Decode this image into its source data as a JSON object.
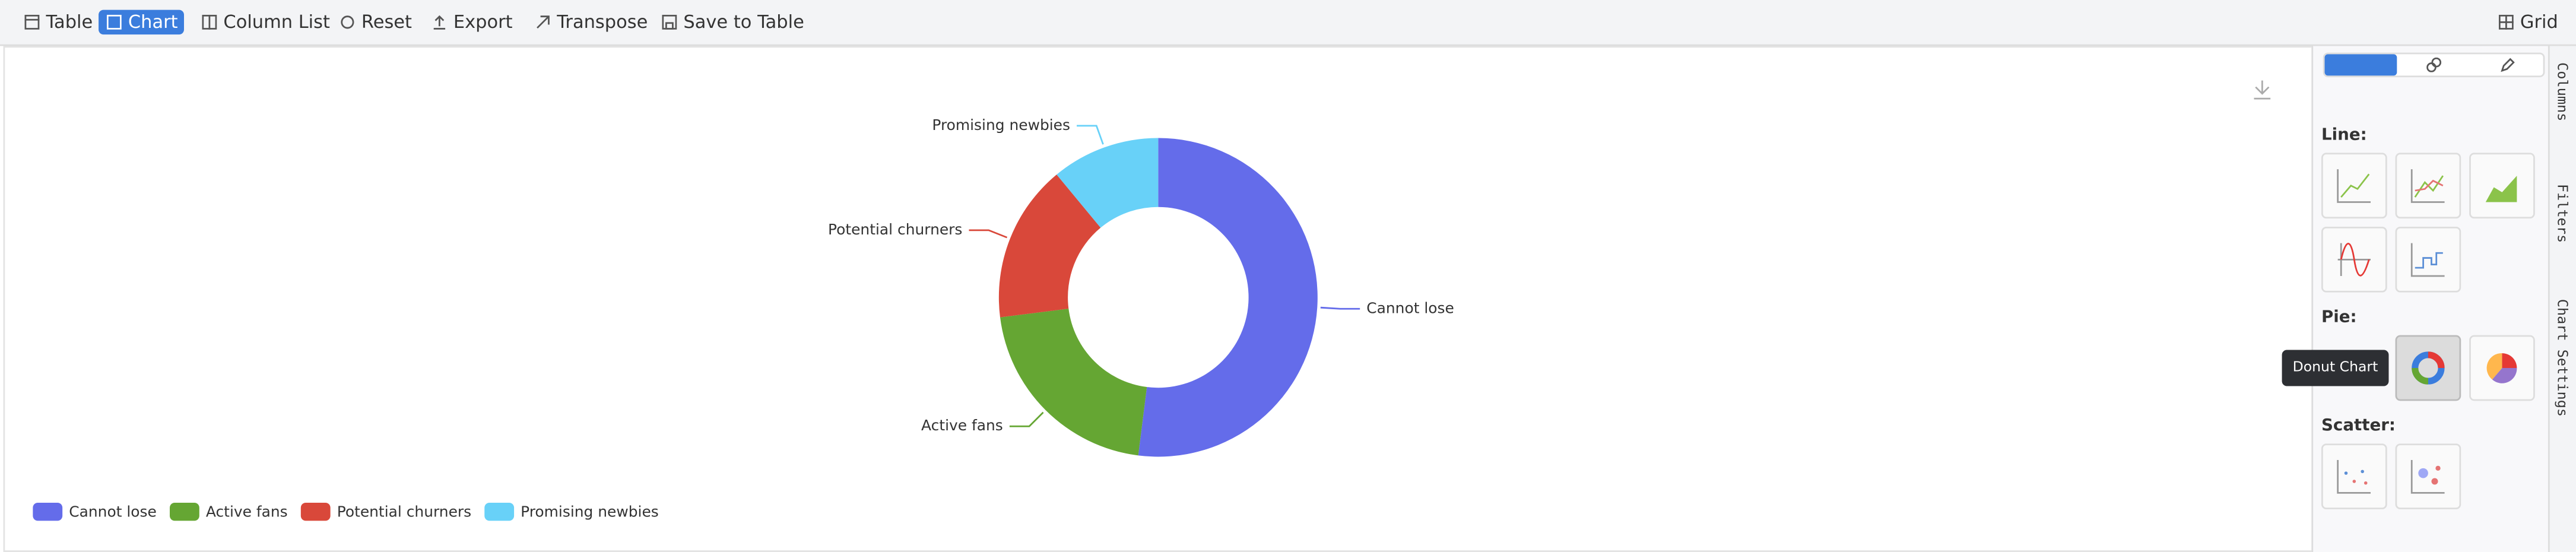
{
  "toolbar": {
    "left": [
      "Table",
      "Chart",
      "Column List",
      "Reset",
      "Export",
      "Transpose",
      "Save to Table"
    ],
    "right": "Grid"
  },
  "chart_data": {
    "type": "donut",
    "categories": [
      "Cannot lose",
      "Active fans",
      "Potential churners",
      "Promising newbies"
    ],
    "values": [
      52,
      21,
      16,
      11
    ],
    "colors": [
      "#646cea",
      "#65a633",
      "#d9483a",
      "#68d1f8"
    ],
    "legend_position": "bottom-left"
  },
  "panel": {
    "sections": [
      "Line:",
      "Pie:",
      "Scatter:"
    ],
    "tooltip": "Donut Chart"
  },
  "side_tabs": [
    "Columns",
    "Filters",
    "Chart Settings"
  ]
}
